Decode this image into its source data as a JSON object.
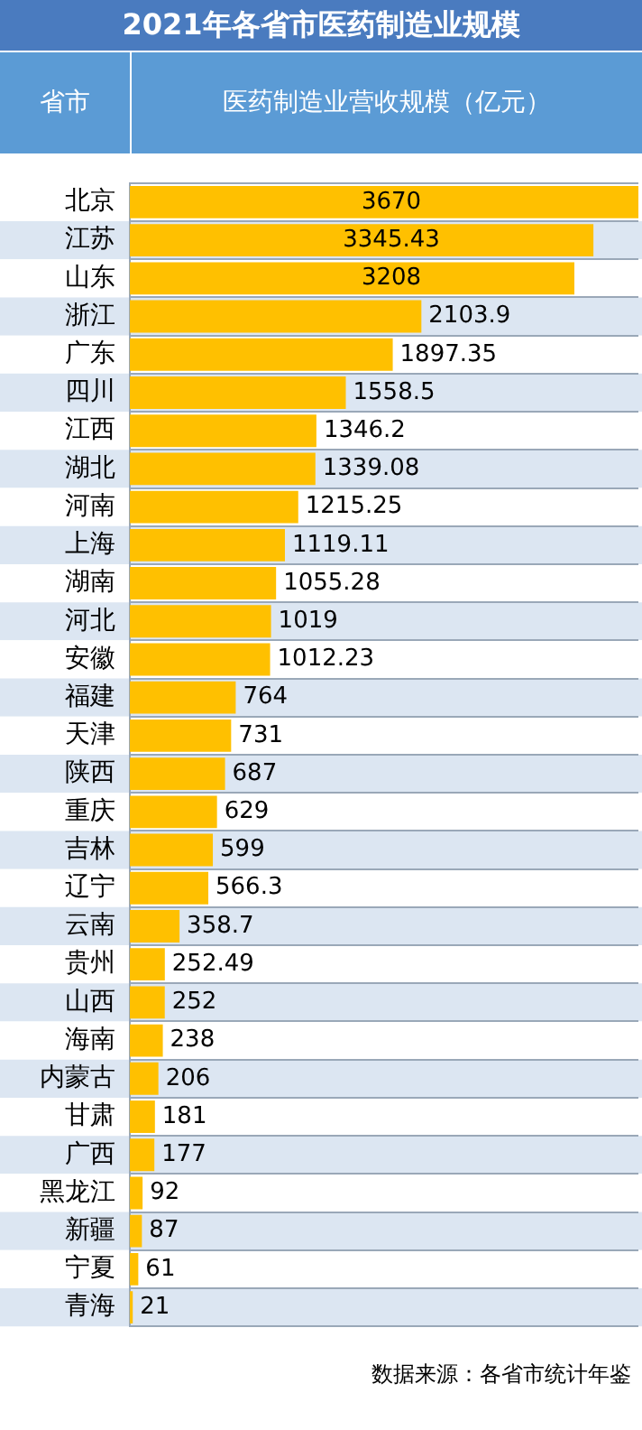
{
  "chart_data": {
    "type": "bar",
    "orientation": "horizontal",
    "title": "2021年各省市医药制造业规模",
    "ylabel": "省市",
    "xlabel": "医药制造业营收规模（亿元）",
    "categories": [
      "北京",
      "江苏",
      "山东",
      "浙江",
      "广东",
      "四川",
      "江西",
      "湖北",
      "河南",
      "上海",
      "湖南",
      "河北",
      "安徽",
      "福建",
      "天津",
      "陕西",
      "重庆",
      "吉林",
      "辽宁",
      "云南",
      "贵州",
      "山西",
      "海南",
      "内蒙古",
      "甘肃",
      "广西",
      "黑龙江",
      "新疆",
      "宁夏",
      "青海"
    ],
    "values": [
      3670,
      3345.43,
      3208,
      2103.9,
      1897.35,
      1558.5,
      1346.2,
      1339.08,
      1215.25,
      1119.11,
      1055.28,
      1019,
      1012.23,
      764,
      731,
      687,
      629,
      599,
      566.3,
      358.7,
      252.49,
      252,
      238,
      206,
      181,
      177,
      92,
      87,
      61,
      21
    ],
    "color": "#ffc000",
    "data_labels": true,
    "grid": "y",
    "annotations": [
      "数据来源：各省市统计年鉴"
    ]
  }
}
